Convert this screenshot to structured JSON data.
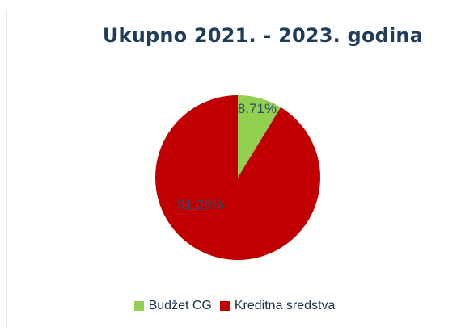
{
  "chart_data": {
    "type": "pie",
    "title": "Ukupno 2021. - 2023. godina",
    "series": [
      {
        "name": "Budžet CG",
        "value": 8.71,
        "label": "8.71%",
        "color": "#92d050"
      },
      {
        "name": "Kreditna sredstva",
        "value": 91.28,
        "label": "91.28%",
        "color": "#c00000"
      }
    ],
    "legend_position": "bottom"
  }
}
